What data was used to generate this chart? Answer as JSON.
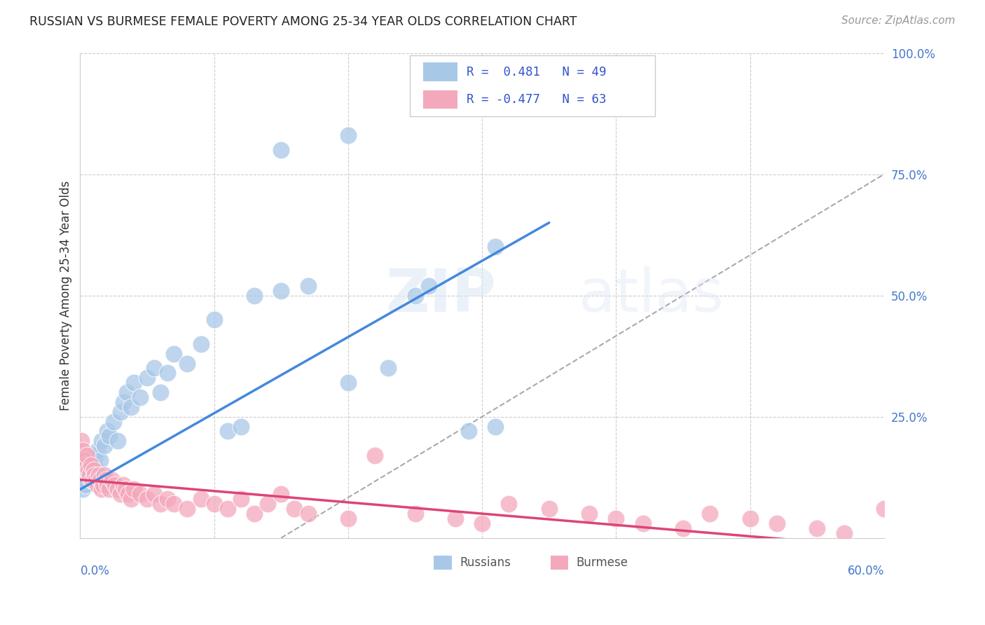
{
  "title": "RUSSIAN VS BURMESE FEMALE POVERTY AMONG 25-34 YEAR OLDS CORRELATION CHART",
  "source": "Source: ZipAtlas.com",
  "ylabel": "Female Poverty Among 25-34 Year Olds",
  "russian_color": "#a8c8e8",
  "burmese_color": "#f4a8bc",
  "trendline_russian_color": "#4488dd",
  "trendline_burmese_color": "#dd4477",
  "trendline_dashed_color": "#aaaaaa",
  "background_color": "#ffffff",
  "xlim": [
    0.0,
    0.6
  ],
  "ylim": [
    0.0,
    1.0
  ],
  "russian_trendline": [
    [
      0.0,
      0.1
    ],
    [
      0.35,
      0.65
    ]
  ],
  "burmese_trendline": [
    [
      0.0,
      0.12
    ],
    [
      0.6,
      -0.02
    ]
  ],
  "dashed_line": [
    [
      0.15,
      0.0
    ],
    [
      0.6,
      0.75
    ]
  ],
  "russian_points": [
    [
      0.001,
      0.12
    ],
    [
      0.002,
      0.1
    ],
    [
      0.003,
      0.13
    ],
    [
      0.004,
      0.11
    ],
    [
      0.005,
      0.14
    ],
    [
      0.006,
      0.15
    ],
    [
      0.007,
      0.13
    ],
    [
      0.008,
      0.12
    ],
    [
      0.009,
      0.16
    ],
    [
      0.01,
      0.14
    ],
    [
      0.011,
      0.15
    ],
    [
      0.012,
      0.17
    ],
    [
      0.013,
      0.18
    ],
    [
      0.015,
      0.16
    ],
    [
      0.016,
      0.2
    ],
    [
      0.018,
      0.19
    ],
    [
      0.02,
      0.22
    ],
    [
      0.022,
      0.21
    ],
    [
      0.025,
      0.24
    ],
    [
      0.028,
      0.2
    ],
    [
      0.03,
      0.26
    ],
    [
      0.032,
      0.28
    ],
    [
      0.035,
      0.3
    ],
    [
      0.038,
      0.27
    ],
    [
      0.04,
      0.32
    ],
    [
      0.045,
      0.29
    ],
    [
      0.05,
      0.33
    ],
    [
      0.055,
      0.35
    ],
    [
      0.06,
      0.3
    ],
    [
      0.065,
      0.34
    ],
    [
      0.07,
      0.38
    ],
    [
      0.08,
      0.36
    ],
    [
      0.09,
      0.4
    ],
    [
      0.1,
      0.45
    ],
    [
      0.11,
      0.22
    ],
    [
      0.12,
      0.23
    ],
    [
      0.13,
      0.5
    ],
    [
      0.15,
      0.51
    ],
    [
      0.17,
      0.52
    ],
    [
      0.2,
      0.32
    ],
    [
      0.23,
      0.35
    ],
    [
      0.25,
      0.5
    ],
    [
      0.26,
      0.52
    ],
    [
      0.29,
      0.22
    ],
    [
      0.31,
      0.23
    ],
    [
      0.15,
      0.8
    ],
    [
      0.2,
      0.83
    ],
    [
      0.27,
      0.9
    ],
    [
      0.31,
      0.6
    ]
  ],
  "burmese_points": [
    [
      0.001,
      0.2
    ],
    [
      0.002,
      0.18
    ],
    [
      0.003,
      0.16
    ],
    [
      0.004,
      0.15
    ],
    [
      0.005,
      0.17
    ],
    [
      0.006,
      0.14
    ],
    [
      0.007,
      0.13
    ],
    [
      0.008,
      0.15
    ],
    [
      0.009,
      0.12
    ],
    [
      0.01,
      0.14
    ],
    [
      0.011,
      0.13
    ],
    [
      0.012,
      0.12
    ],
    [
      0.013,
      0.11
    ],
    [
      0.014,
      0.13
    ],
    [
      0.015,
      0.12
    ],
    [
      0.016,
      0.1
    ],
    [
      0.017,
      0.11
    ],
    [
      0.018,
      0.13
    ],
    [
      0.019,
      0.12
    ],
    [
      0.02,
      0.11
    ],
    [
      0.022,
      0.1
    ],
    [
      0.024,
      0.12
    ],
    [
      0.026,
      0.11
    ],
    [
      0.028,
      0.1
    ],
    [
      0.03,
      0.09
    ],
    [
      0.032,
      0.11
    ],
    [
      0.034,
      0.1
    ],
    [
      0.036,
      0.09
    ],
    [
      0.038,
      0.08
    ],
    [
      0.04,
      0.1
    ],
    [
      0.045,
      0.09
    ],
    [
      0.05,
      0.08
    ],
    [
      0.055,
      0.09
    ],
    [
      0.06,
      0.07
    ],
    [
      0.065,
      0.08
    ],
    [
      0.07,
      0.07
    ],
    [
      0.08,
      0.06
    ],
    [
      0.09,
      0.08
    ],
    [
      0.1,
      0.07
    ],
    [
      0.11,
      0.06
    ],
    [
      0.12,
      0.08
    ],
    [
      0.13,
      0.05
    ],
    [
      0.14,
      0.07
    ],
    [
      0.15,
      0.09
    ],
    [
      0.16,
      0.06
    ],
    [
      0.17,
      0.05
    ],
    [
      0.2,
      0.04
    ],
    [
      0.22,
      0.17
    ],
    [
      0.25,
      0.05
    ],
    [
      0.28,
      0.04
    ],
    [
      0.3,
      0.03
    ],
    [
      0.32,
      0.07
    ],
    [
      0.35,
      0.06
    ],
    [
      0.38,
      0.05
    ],
    [
      0.4,
      0.04
    ],
    [
      0.42,
      0.03
    ],
    [
      0.45,
      0.02
    ],
    [
      0.47,
      0.05
    ],
    [
      0.5,
      0.04
    ],
    [
      0.52,
      0.03
    ],
    [
      0.55,
      0.02
    ],
    [
      0.57,
      0.01
    ],
    [
      0.6,
      0.06
    ]
  ]
}
